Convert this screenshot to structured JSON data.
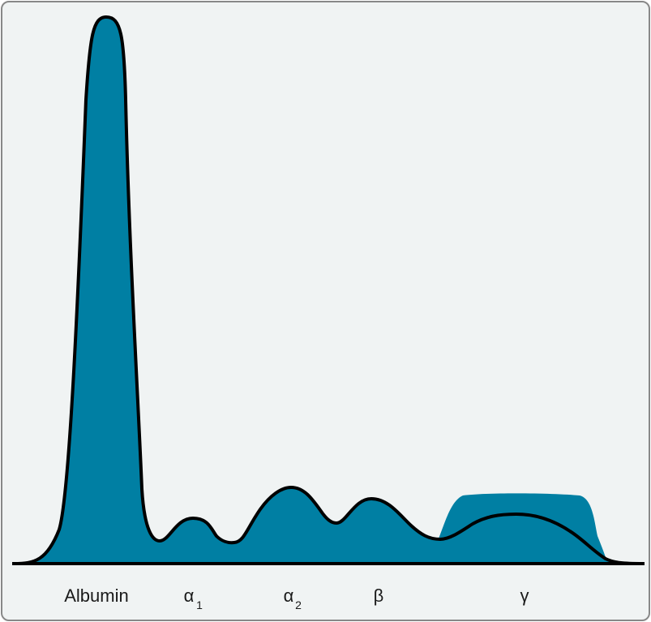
{
  "colors": {
    "background": "#f0f3f3",
    "fill": "#007fa3",
    "outline": "#000000",
    "frame": "#888888"
  },
  "labels": {
    "albumin": "Albumin",
    "alpha1": {
      "symbol": "α",
      "subscript": "1"
    },
    "alpha2": {
      "symbol": "α",
      "subscript": "2"
    },
    "beta": "β",
    "gamma": "γ"
  }
}
